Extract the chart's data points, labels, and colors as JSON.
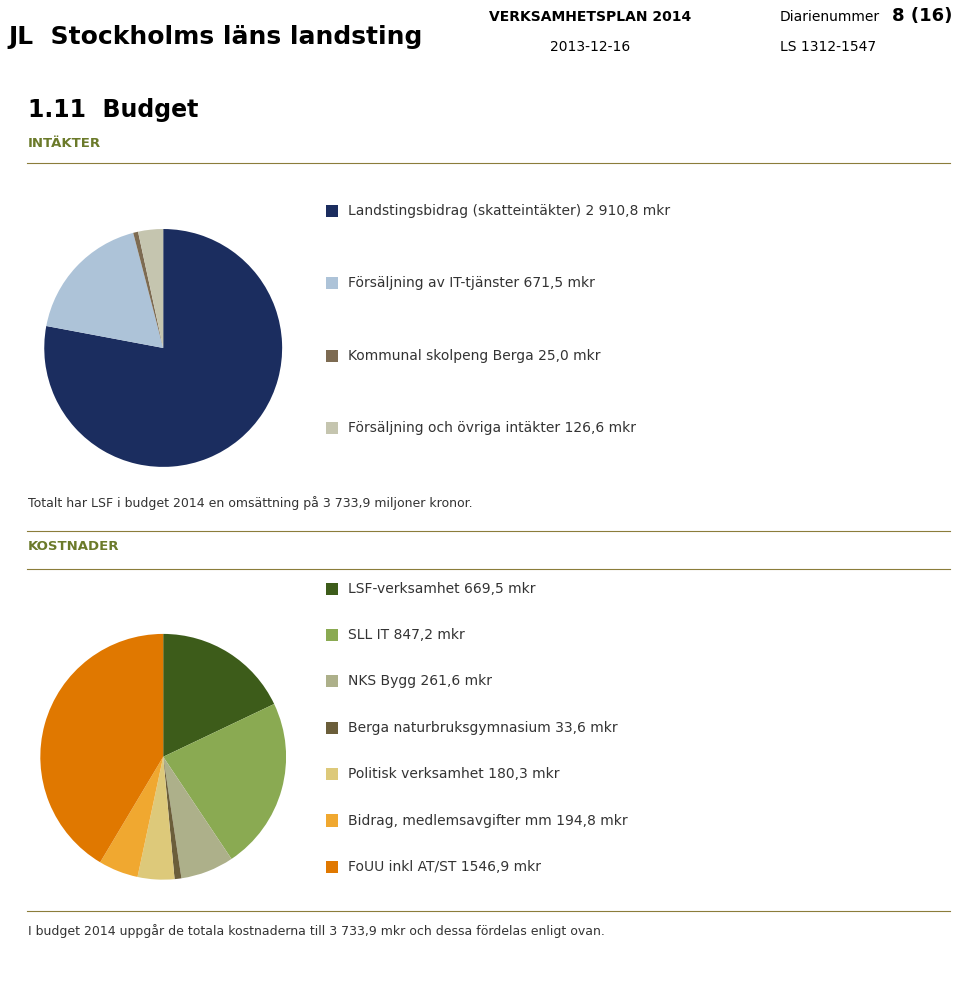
{
  "bg_color": "#ffffff",
  "page_num": "8 (16)",
  "verksamhet": "VERKSAMHETSPLAN 2014",
  "date": "2013-12-16",
  "diarienummer_label": "Diarienummer",
  "diarienummer_val": "LS 1312-1547",
  "section_title": "1.11  Budget",
  "intakter_label": "INTÄKTER",
  "line_color": "#8b7d3a",
  "intakter_values": [
    2910.8,
    671.5,
    25.0,
    126.6
  ],
  "intakter_labels": [
    "Landstingsbidrag (skatteintäkter) 2 910,8 mkr",
    "Försäljning av IT-tjänster 671,5 mkr",
    "Kommunal skolpeng Berga 25,0 mkr",
    "Försäljning och övriga intäkter 126,6 mkr"
  ],
  "intakter_colors": [
    "#1b2d5f",
    "#adc3d8",
    "#7d6b52",
    "#c5c5af"
  ],
  "intakter_note": "Totalt har LSF i budget 2014 en omsättning på 3 733,9 miljoner kronor.",
  "kostnader_label": "KOSTNADER",
  "kostnader_values": [
    669.5,
    847.2,
    261.6,
    33.6,
    180.3,
    194.8,
    1546.9
  ],
  "kostnader_labels": [
    "LSF-verksamhet 669,5 mkr",
    "SLL IT 847,2 mkr",
    "NKS Bygg 261,6 mkr",
    "Berga naturbruksgymnasium 33,6 mkr",
    "Politisk verksamhet 180,3 mkr",
    "Bidrag, medlemsavgifter mm 194,8 mkr",
    "FoUU inkl AT/ST 1546,9 mkr"
  ],
  "kostnader_colors": [
    "#3d5c1a",
    "#8aaa52",
    "#adb08a",
    "#6b5e3a",
    "#ddc97a",
    "#f0a830",
    "#e07800"
  ],
  "kostnader_note": "I budget 2014 uppgår de totala kostnaderna till 3 733,9 mkr och dessa fördelas enligt ovan.",
  "section_color": "#6b7a2a",
  "text_color": "#333333"
}
